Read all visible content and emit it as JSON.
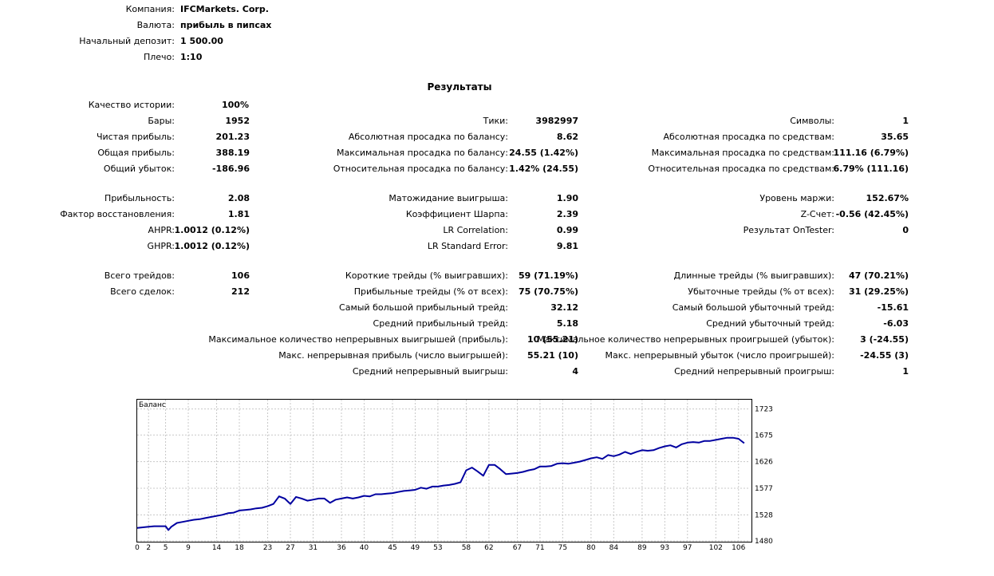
{
  "header": {
    "company_label": "Компания:",
    "company_value": "IFCMarkets. Corp.",
    "currency_label": "Валюта:",
    "currency_value": "прибыль в пипсах",
    "deposit_label": "Начальный депозит:",
    "deposit_value": "1 500.00",
    "leverage_label": "Плечо:",
    "leverage_value": "1:10"
  },
  "results_title": "Результаты",
  "quality": {
    "label": "Качество истории:",
    "value": "100%"
  },
  "col1": [
    {
      "label": "Бары:",
      "value": "1952"
    },
    {
      "label": "Чистая прибыль:",
      "value": "201.23"
    },
    {
      "label": "Общая прибыль:",
      "value": "388.19"
    },
    {
      "label": "Общий убыток:",
      "value": "-186.96"
    },
    {
      "label": "Прибыльность:",
      "value": "2.08"
    },
    {
      "label": "Фактор восстановления:",
      "value": "1.81"
    },
    {
      "label": "AHPR:",
      "value": "1.0012 (0.12%)"
    },
    {
      "label": "GHPR:",
      "value": "1.0012 (0.12%)"
    },
    {
      "label": "Всего трейдов:",
      "value": "106"
    },
    {
      "label": "Всего сделок:",
      "value": "212"
    }
  ],
  "col2": [
    {
      "label": "Тики:",
      "value": "3982997"
    },
    {
      "label": "Абсолютная просадка по балансу:",
      "value": "8.62"
    },
    {
      "label": "Максимальная просадка по балансу:",
      "value": "24.55 (1.42%)"
    },
    {
      "label": "Относительная просадка по балансу:",
      "value": "1.42% (24.55)"
    },
    {
      "label": "Матожидание выигрыша:",
      "value": "1.90"
    },
    {
      "label": "Коэффициент Шарпа:",
      "value": "2.39"
    },
    {
      "label": "LR Correlation:",
      "value": "0.99"
    },
    {
      "label": "LR Standard Error:",
      "value": "9.81"
    },
    {
      "label": "Короткие трейды (% выигравших):",
      "value": "59 (71.19%)"
    },
    {
      "label": "Прибыльные трейды (% от всех):",
      "value": "75 (70.75%)"
    },
    {
      "label": "Самый большой прибыльный трейд:",
      "value": "32.12"
    },
    {
      "label": "Средний прибыльный трейд:",
      "value": "5.18"
    },
    {
      "label": "Максимальное количество непрерывных выигрышей (прибыль):",
      "value": "10 (55.21)"
    },
    {
      "label": "Макс. непрерывная прибыль (число выигрышей):",
      "value": "55.21 (10)"
    },
    {
      "label": "Средний непрерывный выигрыш:",
      "value": "4"
    }
  ],
  "col3": [
    {
      "label": "Символы:",
      "value": "1"
    },
    {
      "label": "Абсолютная просадка по средствам:",
      "value": "35.65"
    },
    {
      "label": "Максимальная просадка по средствам:",
      "value": "111.16 (6.79%)"
    },
    {
      "label": "Относительная просадка по средствам:",
      "value": "6.79% (111.16)"
    },
    {
      "label": "Уровень маржи:",
      "value": "152.67%"
    },
    {
      "label": "Z-Счет:",
      "value": "-0.56 (42.45%)"
    },
    {
      "label": "Результат OnTester:",
      "value": "0"
    },
    {
      "label": "Длинные трейды (% выигравших):",
      "value": "47 (70.21%)"
    },
    {
      "label": "Убыточные трейды (% от всех):",
      "value": "31 (29.25%)"
    },
    {
      "label": "Самый большой убыточный трейд:",
      "value": "-15.61"
    },
    {
      "label": "Средний убыточный трейд:",
      "value": "-6.03"
    },
    {
      "label": "Максимальное количество непрерывных проигрышей (убыток):",
      "value": "3 (-24.55)"
    },
    {
      "label": "Макс. непрерывный убыток (число проигрышей):",
      "value": "-24.55 (3)"
    },
    {
      "label": "Средний непрерывный проигрыш:",
      "value": "1"
    }
  ],
  "chart_data": {
    "type": "line",
    "title": "Баланс",
    "line_color": "#0000a0",
    "grid": true,
    "xlim": [
      0,
      108
    ],
    "ylim": [
      1480,
      1740
    ],
    "x_ticks": [
      "0",
      "2",
      "5",
      "9",
      "14",
      "18",
      "23",
      "27",
      "31",
      "36",
      "40",
      "45",
      "49",
      "53",
      "58",
      "62",
      "67",
      "71",
      "75",
      "80",
      "84",
      "89",
      "93",
      "97",
      "102",
      "106"
    ],
    "y_ticks": [
      "1723",
      "1675",
      "1626",
      "1577",
      "1528",
      "1480"
    ],
    "series": [
      {
        "name": "Баланс",
        "x": [
          0,
          1,
          2,
          3,
          4,
          5,
          5.5,
          6,
          7,
          8,
          9,
          10,
          11,
          12,
          13,
          14,
          15,
          16,
          17,
          18,
          19,
          20,
          21,
          22,
          23,
          24,
          25,
          26,
          27,
          28,
          29,
          30,
          31,
          32,
          33,
          34,
          35,
          36,
          37,
          38,
          39,
          40,
          41,
          42,
          43,
          44,
          45,
          46,
          47,
          48,
          49,
          50,
          51,
          52,
          53,
          54,
          55,
          56,
          57,
          58,
          59,
          60,
          61,
          62,
          63,
          64,
          65,
          66,
          67,
          68,
          69,
          70,
          71,
          72,
          73,
          74,
          75,
          76,
          77,
          78,
          79,
          80,
          81,
          82,
          83,
          84,
          85,
          86,
          87,
          88,
          89,
          90,
          91,
          92,
          93,
          94,
          95,
          96,
          97,
          98,
          99,
          100,
          101,
          102,
          103,
          104,
          105,
          106,
          107
        ],
        "y": [
          1504,
          1505,
          1506,
          1507,
          1507,
          1507,
          1500,
          1506,
          1513,
          1515,
          1517,
          1519,
          1520,
          1522,
          1524,
          1526,
          1528,
          1531,
          1532,
          1536,
          1537,
          1538,
          1540,
          1541,
          1544,
          1548,
          1562,
          1558,
          1548,
          1561,
          1558,
          1554,
          1556,
          1558,
          1558,
          1550,
          1556,
          1558,
          1560,
          1558,
          1560,
          1563,
          1562,
          1566,
          1566,
          1567,
          1568,
          1570,
          1572,
          1573,
          1574,
          1578,
          1576,
          1580,
          1580,
          1582,
          1583,
          1585,
          1588,
          1610,
          1615,
          1608,
          1600,
          1620,
          1620,
          1612,
          1603,
          1604,
          1605,
          1607,
          1610,
          1612,
          1617,
          1617,
          1618,
          1622,
          1623,
          1622,
          1624,
          1626,
          1629,
          1632,
          1634,
          1631,
          1638,
          1636,
          1639,
          1644,
          1640,
          1644,
          1647,
          1646,
          1647,
          1651,
          1654,
          1656,
          1652,
          1658,
          1661,
          1662,
          1661,
          1664,
          1664,
          1666,
          1668,
          1670,
          1670,
          1668,
          1660
        ]
      }
    ]
  }
}
